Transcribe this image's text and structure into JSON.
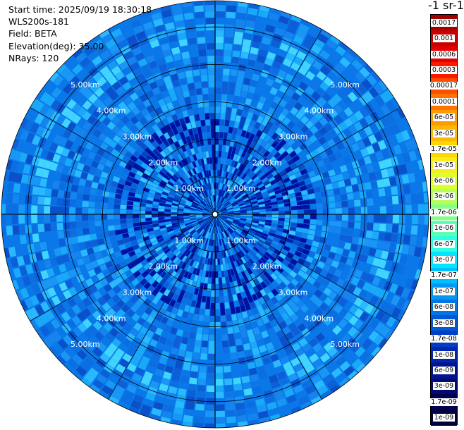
{
  "info": {
    "start_time": "Start time: 2025/09/19 18:30:18",
    "instrument": "WLS200s-181",
    "field": "Field: BETA",
    "elevation": "Elevation(deg): 35.00",
    "nrays": "NRays: 120"
  },
  "colorbar": {
    "title": "-1 sr-1",
    "labels": [
      "0.0017",
      "0.001",
      "0.0006",
      "0.0003",
      "0.00017",
      "0.0001",
      "6e-05",
      "3e-05",
      "1.7e-05",
      "1e-05",
      "6e-06",
      "3e-06",
      "1.7e-06",
      "1e-06",
      "6e-07",
      "3e-07",
      "1.7e-07",
      "1e-07",
      "6e-08",
      "3e-08",
      "1.7e-08",
      "1e-08",
      "6e-09",
      "3e-09",
      "1.7e-09",
      "1e-09"
    ],
    "colors": [
      "#a00000",
      "#c80000",
      "#e40000",
      "#fa1a00",
      "#ff4d00",
      "#ff7400",
      "#ff9a00",
      "#ffb800",
      "#ffd700",
      "#f5ee1a",
      "#dcff30",
      "#b2ff5a",
      "#86ff86",
      "#5affb2",
      "#2fffe0",
      "#00e6ff",
      "#00bfff",
      "#0098f0",
      "#0076e6",
      "#0058d6",
      "#003ec4",
      "#0026b0",
      "#001490",
      "#000a70",
      "#00004f",
      "#00003a"
    ]
  },
  "ppi": {
    "range_labels": [
      "1.00km",
      "2.00km",
      "3.00km",
      "4.00km",
      "5.00km"
    ],
    "n_rays": 120,
    "max_range_km": 5.7
  }
}
